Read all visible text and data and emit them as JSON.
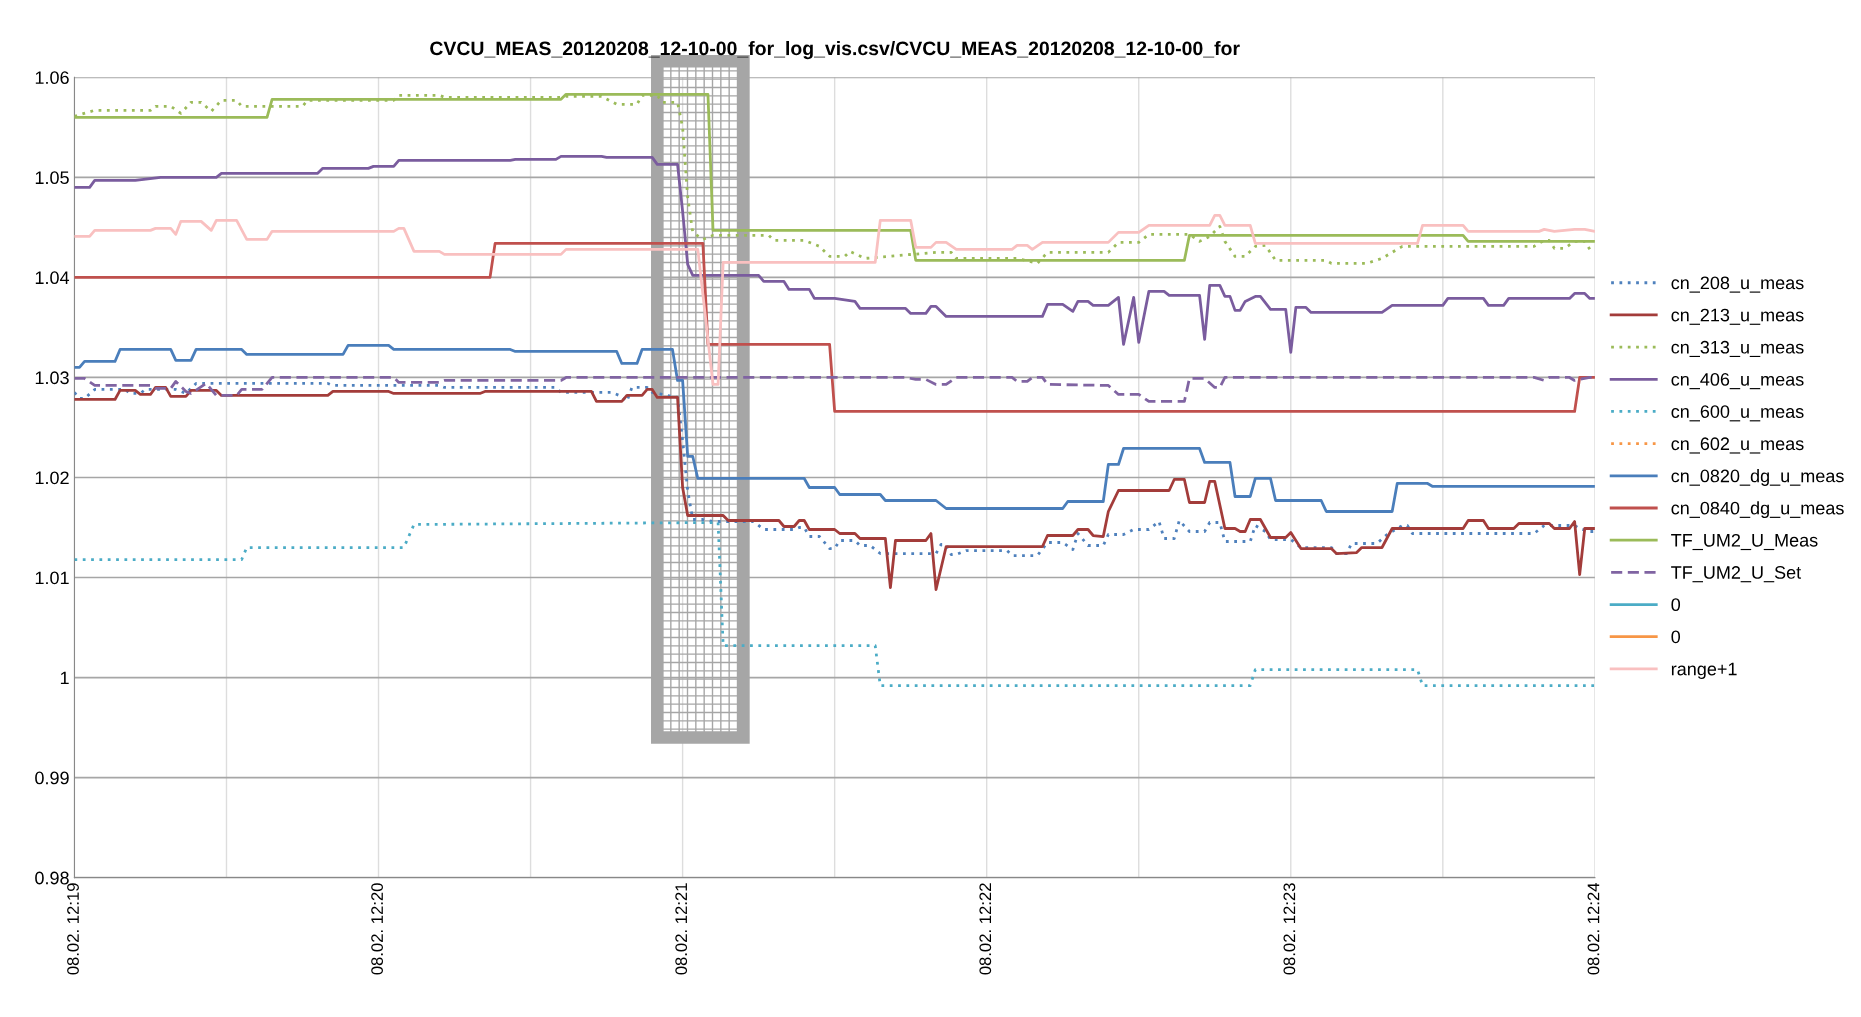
{
  "chart_data": {
    "type": "line",
    "title": "CVCU_MEAS_20120208_12-10-00_for_log_vis.csv/CVCU_MEAS_20120208_12-10-00_for",
    "xlim": [
      "2012-02-08T12:19",
      "2012-02-08T12:24"
    ],
    "xticks": [
      {
        "value": "2012-02-08T12:19",
        "label": "08.02. 12:19"
      },
      {
        "value": "2012-02-08T12:19:30",
        "label": null
      },
      {
        "value": "2012-02-08T12:20",
        "label": "08.02. 12:20"
      },
      {
        "value": "2012-02-08T12:20:30",
        "label": null
      },
      {
        "value": "2012-02-08T12:21",
        "label": "08.02. 12:21"
      },
      {
        "value": "2012-02-08T12:21:30",
        "label": null
      },
      {
        "value": "2012-02-08T12:22",
        "label": "08.02. 12:22"
      },
      {
        "value": "2012-02-08T12:22:30",
        "label": null
      },
      {
        "value": "2012-02-08T12:23",
        "label": "08.02. 12:23"
      },
      {
        "value": "2012-02-08T12:23:30",
        "label": null
      },
      {
        "value": "2012-02-08T12:24",
        "label": "08.02. 12:24"
      }
    ],
    "ylim": [
      0.98,
      1.06
    ],
    "yticks": [
      0.98,
      0.99,
      1,
      1.01,
      1.02,
      1.03,
      1.04,
      1.05,
      1.06
    ],
    "grid": true,
    "legend": "right",
    "marker": "none",
    "bands": [
      {
        "axis": "x",
        "from": "2012-02-08T12:20:55",
        "to": "2012-02-08T12:21:12",
        "color": "#a6a6a6"
      }
    ],
    "series": [
      {
        "name": "cn_208_u_meas",
        "color": "#4f81bd",
        "line_style": "dotted",
        "x": [
          "2012-02-08T12:19:00",
          "2012-02-08T12:19:01",
          "2012-02-08T12:19:02",
          "2012-02-08T12:19:04",
          "2012-02-08T12:19:10",
          "2012-02-08T12:19:11",
          "2012-02-08T12:19:13",
          "2012-02-08T12:19:14",
          "2012-02-08T12:19:20",
          "2012-02-08T12:19:22",
          "2012-02-08T12:19:24",
          "2012-02-08T12:19:37",
          "2012-02-08T12:19:50",
          "2012-02-08T12:19:51",
          "2012-02-08T12:20:12",
          "2012-02-08T12:20:13",
          "2012-02-08T12:20:35",
          "2012-02-08T12:20:36",
          "2012-02-08T12:20:46",
          "2012-02-08T12:20:48",
          "2012-02-08T12:20:49",
          "2012-02-08T12:20:50",
          "2012-02-08T12:20:53",
          "2012-02-08T12:20:54",
          "2012-02-08T12:20:59",
          "2012-02-08T12:21:00",
          "2012-02-08T12:21:01",
          "2012-02-08T12:21:02",
          "2012-02-08T12:21:04",
          "2012-02-08T12:21:06",
          "2012-02-08T12:21:14",
          "2012-02-08T12:21:16",
          "2012-02-08T12:21:22",
          "2012-02-08T12:21:23",
          "2012-02-08T12:21:24",
          "2012-02-08T12:21:25",
          "2012-02-08T12:21:27",
          "2012-02-08T12:21:29",
          "2012-02-08T12:21:30",
          "2012-02-08T12:21:31",
          "2012-02-08T12:21:34",
          "2012-02-08T12:21:35",
          "2012-02-08T12:21:37",
          "2012-02-08T12:21:39",
          "2012-02-08T12:21:50",
          "2012-02-08T12:21:51",
          "2012-02-08T12:21:52",
          "2012-02-08T12:21:53",
          "2012-02-08T12:21:54",
          "2012-02-08T12:21:56",
          "2012-02-08T12:22:04",
          "2012-02-08T12:22:05",
          "2012-02-08T12:22:10",
          "2012-02-08T12:22:12",
          "2012-02-08T12:22:15",
          "2012-02-08T12:22:17",
          "2012-02-08T12:22:18",
          "2012-02-08T12:22:20",
          "2012-02-08T12:22:23",
          "2012-02-08T12:22:24",
          "2012-02-08T12:22:27",
          "2012-02-08T12:22:29",
          "2012-02-08T12:22:32",
          "2012-02-08T12:22:34",
          "2012-02-08T12:22:35",
          "2012-02-08T12:22:37",
          "2012-02-08T12:22:38",
          "2012-02-08T12:22:40",
          "2012-02-08T12:22:43",
          "2012-02-08T12:22:44",
          "2012-02-08T12:22:46",
          "2012-02-08T12:22:47",
          "2012-02-08T12:22:52",
          "2012-02-08T12:22:53",
          "2012-02-08T12:22:55",
          "2012-02-08T12:22:56",
          "2012-02-08T12:23:00",
          "2012-02-08T12:23:02",
          "2012-02-08T12:23:08",
          "2012-02-08T12:23:09",
          "2012-02-08T12:23:11",
          "2012-02-08T12:23:12",
          "2012-02-08T12:23:17",
          "2012-02-08T12:23:19",
          "2012-02-08T12:23:22",
          "2012-02-08T12:23:23",
          "2012-02-08T12:23:24",
          "2012-02-08T12:23:48",
          "2012-02-08T12:23:50",
          "2012-02-08T12:23:56",
          "2012-02-08T12:23:57",
          "2012-02-08T12:23:59",
          "2012-02-08T12:24:00"
        ],
        "values": [
          1.0285,
          1.0279,
          1.0279,
          1.0288,
          1.0288,
          1.0284,
          1.0284,
          1.0288,
          1.0288,
          1.0284,
          1.0294,
          1.0294,
          1.0294,
          1.0292,
          1.0292,
          1.029,
          1.029,
          1.0285,
          1.0285,
          1.0281,
          1.0276,
          1.029,
          1.029,
          1.0285,
          1.028,
          1.0237,
          1.0187,
          1.0158,
          1.0158,
          1.0156,
          1.0156,
          1.0148,
          1.0148,
          1.015,
          1.015,
          1.0141,
          1.0141,
          1.0129,
          1.0129,
          1.0137,
          1.0137,
          1.0132,
          1.0132,
          1.0124,
          1.0124,
          1.0133,
          1.0133,
          1.0123,
          1.0123,
          1.0127,
          1.0127,
          1.0122,
          1.0122,
          1.0135,
          1.0135,
          1.0128,
          1.0144,
          1.0132,
          1.0132,
          1.0143,
          1.0143,
          1.0148,
          1.0148,
          1.0156,
          1.0139,
          1.0139,
          1.0157,
          1.0146,
          1.0146,
          1.0155,
          1.0155,
          1.0136,
          1.0136,
          1.0152,
          1.0146,
          1.0138,
          1.0138,
          1.013,
          1.013,
          1.0124,
          1.0124,
          1.0134,
          1.0134,
          1.0143,
          1.0152,
          1.0152,
          1.0144,
          1.0144,
          1.0152,
          1.0152,
          1.0149,
          1.0146,
          1.0146
        ]
      },
      {
        "name": "cn_213_u_meas",
        "color": "#a33c3a",
        "line_style": "solid",
        "x": [
          "2012-02-08T12:19:00",
          "2012-02-08T12:19:08",
          "2012-02-08T12:19:09",
          "2012-02-08T12:19:12",
          "2012-02-08T12:19:13",
          "2012-02-08T12:19:15",
          "2012-02-08T12:19:16",
          "2012-02-08T12:19:18",
          "2012-02-08T12:19:19",
          "2012-02-08T12:19:22",
          "2012-02-08T12:19:23",
          "2012-02-08T12:19:28",
          "2012-02-08T12:19:29",
          "2012-02-08T12:19:50",
          "2012-02-08T12:19:51",
          "2012-02-08T12:20:02",
          "2012-02-08T12:20:03",
          "2012-02-08T12:20:20",
          "2012-02-08T12:20:21",
          "2012-02-08T12:20:42",
          "2012-02-08T12:20:43",
          "2012-02-08T12:20:48",
          "2012-02-08T12:20:49",
          "2012-02-08T12:20:52",
          "2012-02-08T12:20:53",
          "2012-02-08T12:20:54",
          "2012-02-08T12:20:55",
          "2012-02-08T12:20:59",
          "2012-02-08T12:21:00",
          "2012-02-08T12:21:01",
          "2012-02-08T12:21:08",
          "2012-02-08T12:21:09",
          "2012-02-08T12:21:19",
          "2012-02-08T12:21:20",
          "2012-02-08T12:21:22",
          "2012-02-08T12:21:23",
          "2012-02-08T12:21:24",
          "2012-02-08T12:21:25",
          "2012-02-08T12:21:30",
          "2012-02-08T12:21:31",
          "2012-02-08T12:21:34",
          "2012-02-08T12:21:35",
          "2012-02-08T12:21:40",
          "2012-02-08T12:21:41",
          "2012-02-08T12:21:42",
          "2012-02-08T12:21:48",
          "2012-02-08T12:21:49",
          "2012-02-08T12:21:50",
          "2012-02-08T12:21:52",
          "2012-02-08T12:22:11",
          "2012-02-08T12:22:12",
          "2012-02-08T12:22:17",
          "2012-02-08T12:22:18",
          "2012-02-08T12:22:20",
          "2012-02-08T12:22:21",
          "2012-02-08T12:22:23",
          "2012-02-08T12:22:24",
          "2012-02-08T12:22:26",
          "2012-02-08T12:22:36",
          "2012-02-08T12:22:37",
          "2012-02-08T12:22:39",
          "2012-02-08T12:22:40",
          "2012-02-08T12:22:43",
          "2012-02-08T12:22:44",
          "2012-02-08T12:22:45",
          "2012-02-08T12:22:47",
          "2012-02-08T12:22:49",
          "2012-02-08T12:22:50",
          "2012-02-08T12:22:51",
          "2012-02-08T12:22:52",
          "2012-02-08T12:22:54",
          "2012-02-08T12:22:56",
          "2012-02-08T12:22:59",
          "2012-02-08T12:23:00",
          "2012-02-08T12:23:02",
          "2012-02-08T12:23:08",
          "2012-02-08T12:23:09",
          "2012-02-08T12:23:13",
          "2012-02-08T12:23:14",
          "2012-02-08T12:23:18",
          "2012-02-08T12:23:20",
          "2012-02-08T12:23:34",
          "2012-02-08T12:23:35",
          "2012-02-08T12:23:38",
          "2012-02-08T12:23:39",
          "2012-02-08T12:23:44",
          "2012-02-08T12:23:45",
          "2012-02-08T12:23:51",
          "2012-02-08T12:23:52",
          "2012-02-08T12:23:55",
          "2012-02-08T12:23:56",
          "2012-02-08T12:23:57",
          "2012-02-08T12:23:58",
          "2012-02-08T12:24:00"
        ],
        "values": [
          1.0278,
          1.0278,
          1.0287,
          1.0287,
          1.0283,
          1.0283,
          1.029,
          1.029,
          1.0281,
          1.0281,
          1.0287,
          1.0287,
          1.0282,
          1.0282,
          1.0286,
          1.0286,
          1.0284,
          1.0284,
          1.0286,
          1.0286,
          1.0276,
          1.0276,
          1.0282,
          1.0282,
          1.0288,
          1.0288,
          1.028,
          1.028,
          1.019,
          1.0162,
          1.0162,
          1.0157,
          1.0157,
          1.0151,
          1.0151,
          1.0157,
          1.0157,
          1.0148,
          1.0148,
          1.0144,
          1.0144,
          1.0139,
          1.0139,
          1.009,
          1.0137,
          1.0137,
          1.0144,
          1.0088,
          1.0131,
          1.0131,
          1.0142,
          1.0142,
          1.0148,
          1.0148,
          1.0142,
          1.0141,
          1.0166,
          1.0187,
          1.0187,
          1.0198,
          1.0198,
          1.0175,
          1.0175,
          1.0196,
          1.0196,
          1.0149,
          1.0149,
          1.0146,
          1.0146,
          1.0158,
          1.0158,
          1.014,
          1.014,
          1.0145,
          1.0129,
          1.0129,
          1.0124,
          1.0125,
          1.013,
          1.013,
          1.0149,
          1.0149,
          1.0157,
          1.0157,
          1.0149,
          1.0149,
          1.0154,
          1.0154,
          1.0149,
          1.0149,
          1.0156,
          1.0103,
          1.0149,
          1.0149
        ]
      },
      {
        "name": "cn_313_u_meas",
        "color": "#9bbb59",
        "line_style": "dotted",
        "x": [
          "2012-02-08T12:19:00",
          "2012-02-08T12:19:04",
          "2012-02-08T12:19:15",
          "2012-02-08T12:19:16",
          "2012-02-08T12:19:19",
          "2012-02-08T12:19:21",
          "2012-02-08T12:19:23",
          "2012-02-08T12:19:25",
          "2012-02-08T12:19:27",
          "2012-02-08T12:19:29",
          "2012-02-08T12:19:32",
          "2012-02-08T12:19:33",
          "2012-02-08T12:19:45",
          "2012-02-08T12:19:46",
          "2012-02-08T12:20:03",
          "2012-02-08T12:20:04",
          "2012-02-08T12:20:12",
          "2012-02-08T12:20:13",
          "2012-02-08T12:20:36",
          "2012-02-08T12:20:37",
          "2012-02-08T12:20:44",
          "2012-02-08T12:20:47",
          "2012-02-08T12:20:51",
          "2012-02-08T12:20:52",
          "2012-02-08T12:20:55",
          "2012-02-08T12:20:56",
          "2012-02-08T12:20:59",
          "2012-02-08T12:21:00",
          "2012-02-08T12:21:01",
          "2012-02-08T12:21:02",
          "2012-02-08T12:21:04",
          "2012-02-08T12:21:06",
          "2012-02-08T12:21:17",
          "2012-02-08T12:21:18",
          "2012-02-08T12:21:24",
          "2012-02-08T12:21:27",
          "2012-02-08T12:21:29",
          "2012-02-08T12:21:32",
          "2012-02-08T12:21:33",
          "2012-02-08T12:21:36",
          "2012-02-08T12:21:50",
          "2012-02-08T12:21:53",
          "2012-02-08T12:21:54",
          "2012-02-08T12:22:06",
          "2012-02-08T12:22:10",
          "2012-02-08T12:22:12",
          "2012-02-08T12:22:24",
          "2012-02-08T12:22:26",
          "2012-02-08T12:22:30",
          "2012-02-08T12:22:32",
          "2012-02-08T12:22:40",
          "2012-02-08T12:22:42",
          "2012-02-08T12:22:44",
          "2012-02-08T12:22:46",
          "2012-02-08T12:22:47",
          "2012-02-08T12:22:49",
          "2012-02-08T12:22:51",
          "2012-02-08T12:22:53",
          "2012-02-08T12:22:55",
          "2012-02-08T12:22:57",
          "2012-02-08T12:23:07",
          "2012-02-08T12:23:08",
          "2012-02-08T12:23:15",
          "2012-02-08T12:23:18",
          "2012-02-08T12:23:22",
          "2012-02-08T12:23:48",
          "2012-02-08T12:23:50",
          "2012-02-08T12:23:51",
          "2012-02-08T12:23:52",
          "2012-02-08T12:23:54",
          "2012-02-08T12:23:56",
          "2012-02-08T12:23:58",
          "2012-02-08T12:23:59",
          "2012-02-08T12:24:00"
        ],
        "values": [
          1.0561,
          1.0567,
          1.0567,
          1.0571,
          1.0571,
          1.0564,
          1.0575,
          1.0575,
          1.0566,
          1.0577,
          1.0577,
          1.0571,
          1.0571,
          1.0577,
          1.0577,
          1.0582,
          1.0582,
          1.058,
          1.058,
          1.0581,
          1.0581,
          1.0573,
          1.0573,
          1.0582,
          1.0582,
          1.0575,
          1.0575,
          1.055,
          1.048,
          1.0445,
          1.0438,
          1.0442,
          1.0442,
          1.0437,
          1.0437,
          1.0431,
          1.0421,
          1.0421,
          1.0426,
          1.0419,
          1.0425,
          1.0425,
          1.0419,
          1.0419,
          1.0414,
          1.0425,
          1.0425,
          1.0435,
          1.0435,
          1.0443,
          1.0443,
          1.0436,
          1.0441,
          1.0451,
          1.0436,
          1.0421,
          1.0421,
          1.0431,
          1.0432,
          1.0417,
          1.0417,
          1.0414,
          1.0414,
          1.0419,
          1.0431,
          1.0431,
          1.0437,
          1.0437,
          1.0429,
          1.0429,
          1.0436,
          1.0436,
          1.0428,
          1.0429
        ]
      },
      {
        "name": "cn_406_u_meas",
        "color": "#7a5c9e",
        "line_style": "solid",
        "x": [
          "2012-02-08T12:19:00",
          "2012-02-08T12:19:03",
          "2012-02-08T12:19:04",
          "2012-02-08T12:19:12",
          "2012-02-08T12:19:17",
          "2012-02-08T12:19:28",
          "2012-02-08T12:19:29",
          "2012-02-08T12:19:48",
          "2012-02-08T12:19:49",
          "2012-02-08T12:19:58",
          "2012-02-08T12:19:59",
          "2012-02-08T12:20:03",
          "2012-02-08T12:20:04",
          "2012-02-08T12:20:26",
          "2012-02-08T12:20:27",
          "2012-02-08T12:20:35",
          "2012-02-08T12:20:36",
          "2012-02-08T12:20:44",
          "2012-02-08T12:20:45",
          "2012-02-08T12:20:54",
          "2012-02-08T12:20:55",
          "2012-02-08T12:20:59",
          "2012-02-08T12:21:00",
          "2012-02-08T12:21:01",
          "2012-02-08T12:21:02",
          "2012-02-08T12:21:15",
          "2012-02-08T12:21:16",
          "2012-02-08T12:21:20",
          "2012-02-08T12:21:21",
          "2012-02-08T12:21:25",
          "2012-02-08T12:21:26",
          "2012-02-08T12:21:30",
          "2012-02-08T12:21:34",
          "2012-02-08T12:21:35",
          "2012-02-08T12:21:44",
          "2012-02-08T12:21:45",
          "2012-02-08T12:21:48",
          "2012-02-08T12:21:49",
          "2012-02-08T12:21:50",
          "2012-02-08T12:21:52",
          "2012-02-08T12:22:11",
          "2012-02-08T12:22:12",
          "2012-02-08T12:22:15",
          "2012-02-08T12:22:17",
          "2012-02-08T12:22:18",
          "2012-02-08T12:22:20",
          "2012-02-08T12:22:21",
          "2012-02-08T12:22:24",
          "2012-02-08T12:22:26",
          "2012-02-08T12:22:27",
          "2012-02-08T12:22:29",
          "2012-02-08T12:22:30",
          "2012-02-08T12:22:32",
          "2012-02-08T12:22:35",
          "2012-02-08T12:22:36",
          "2012-02-08T12:22:42",
          "2012-02-08T12:22:43",
          "2012-02-08T12:22:44",
          "2012-02-08T12:22:46",
          "2012-02-08T12:22:47",
          "2012-02-08T12:22:48",
          "2012-02-08T12:22:49",
          "2012-02-08T12:22:50",
          "2012-02-08T12:22:51",
          "2012-02-08T12:22:53",
          "2012-02-08T12:22:54",
          "2012-02-08T12:22:56",
          "2012-02-08T12:22:59",
          "2012-02-08T12:23:00",
          "2012-02-08T12:23:01",
          "2012-02-08T12:23:03",
          "2012-02-08T12:23:04",
          "2012-02-08T12:23:18",
          "2012-02-08T12:23:20",
          "2012-02-08T12:23:30",
          "2012-02-08T12:23:31",
          "2012-02-08T12:23:38",
          "2012-02-08T12:23:39",
          "2012-02-08T12:23:42",
          "2012-02-08T12:23:43",
          "2012-02-08T12:23:55",
          "2012-02-08T12:23:56",
          "2012-02-08T12:23:58",
          "2012-02-08T12:23:59",
          "2012-02-08T12:24:00"
        ],
        "values": [
          1.049,
          1.049,
          1.0497,
          1.0497,
          1.05,
          1.05,
          1.0504,
          1.0504,
          1.0509,
          1.0509,
          1.0511,
          1.0511,
          1.0517,
          1.0517,
          1.0518,
          1.0518,
          1.0521,
          1.0521,
          1.052,
          1.052,
          1.0513,
          1.0513,
          1.0466,
          1.0413,
          1.0402,
          1.0402,
          1.0396,
          1.0396,
          1.0388,
          1.0388,
          1.0379,
          1.0379,
          1.0376,
          1.0369,
          1.0369,
          1.0364,
          1.0364,
          1.0371,
          1.0371,
          1.0361,
          1.0361,
          1.0373,
          1.0373,
          1.0366,
          1.0376,
          1.0376,
          1.0372,
          1.0372,
          1.038,
          1.0333,
          1.038,
          1.0335,
          1.0386,
          1.0386,
          1.0382,
          1.0382,
          1.0338,
          1.0392,
          1.0392,
          1.0381,
          1.0381,
          1.0367,
          1.0367,
          1.0376,
          1.0381,
          1.0381,
          1.0368,
          1.0368,
          1.0325,
          1.037,
          1.037,
          1.0365,
          1.0365,
          1.0372,
          1.0372,
          1.0379,
          1.0379,
          1.0372,
          1.0372,
          1.0379,
          1.0379,
          1.0384,
          1.0384,
          1.0379,
          1.0379
        ]
      },
      {
        "name": "cn_600_u_meas",
        "color": "#4bacc6",
        "line_style": "dotted",
        "x": [
          "2012-02-08T12:19:00",
          "2012-02-08T12:19:33",
          "2012-02-08T12:19:34",
          "2012-02-08T12:20:05",
          "2012-02-08T12:20:07",
          "2012-02-08T12:21:07",
          "2012-02-08T12:21:08",
          "2012-02-08T12:21:38",
          "2012-02-08T12:21:39",
          "2012-02-08T12:22:52",
          "2012-02-08T12:22:53",
          "2012-02-08T12:23:25",
          "2012-02-08T12:23:26",
          "2012-02-08T12:24:00"
        ],
        "values": [
          1.0118,
          1.0118,
          1.013,
          1.013,
          1.0153,
          1.0155,
          1.0032,
          1.0032,
          0.9992,
          0.9992,
          1.0008,
          1.0008,
          0.9992,
          0.9992
        ]
      },
      {
        "name": "cn_602_u_meas",
        "color": "#f79646",
        "line_style": "dotted"
      },
      {
        "name": "cn_0820_dg_u_meas",
        "color": "#4a7ebb",
        "line_style": "solid",
        "x": [
          "2012-02-08T12:19:00",
          "2012-02-08T12:19:01",
          "2012-02-08T12:19:02",
          "2012-02-08T12:19:08",
          "2012-02-08T12:19:09",
          "2012-02-08T12:19:19",
          "2012-02-08T12:19:20",
          "2012-02-08T12:19:23",
          "2012-02-08T12:19:24",
          "2012-02-08T12:19:33",
          "2012-02-08T12:19:34",
          "2012-02-08T12:19:53",
          "2012-02-08T12:19:54",
          "2012-02-08T12:20:02",
          "2012-02-08T12:20:03",
          "2012-02-08T12:20:26",
          "2012-02-08T12:20:27",
          "2012-02-08T12:20:47",
          "2012-02-08T12:20:48",
          "2012-02-08T12:20:51",
          "2012-02-08T12:20:52",
          "2012-02-08T12:20:58",
          "2012-02-08T12:20:59",
          "2012-02-08T12:21:00",
          "2012-02-08T12:21:01",
          "2012-02-08T12:21:02",
          "2012-02-08T12:21:03",
          "2012-02-08T12:21:24",
          "2012-02-08T12:21:25",
          "2012-02-08T12:21:30",
          "2012-02-08T12:21:31",
          "2012-02-08T12:21:39",
          "2012-02-08T12:21:40",
          "2012-02-08T12:21:50",
          "2012-02-08T12:21:52",
          "2012-02-08T12:22:15",
          "2012-02-08T12:22:16",
          "2012-02-08T12:22:23",
          "2012-02-08T12:22:24",
          "2012-02-08T12:22:26",
          "2012-02-08T12:22:27",
          "2012-02-08T12:22:42",
          "2012-02-08T12:22:43",
          "2012-02-08T12:22:48",
          "2012-02-08T12:22:49",
          "2012-02-08T12:22:52",
          "2012-02-08T12:22:53",
          "2012-02-08T12:22:56",
          "2012-02-08T12:22:57",
          "2012-02-08T12:23:06",
          "2012-02-08T12:23:07",
          "2012-02-08T12:23:20",
          "2012-02-08T12:23:21",
          "2012-02-08T12:23:27",
          "2012-02-08T12:23:28",
          "2012-02-08T12:24:00"
        ],
        "values": [
          1.031,
          1.031,
          1.0316,
          1.0316,
          1.0328,
          1.0328,
          1.0317,
          1.0317,
          1.0328,
          1.0328,
          1.0323,
          1.0323,
          1.0332,
          1.0332,
          1.0328,
          1.0328,
          1.0326,
          1.0326,
          1.0314,
          1.0314,
          1.0328,
          1.0328,
          1.0297,
          1.0297,
          1.0221,
          1.0221,
          1.0199,
          1.0199,
          1.019,
          1.019,
          1.0183,
          1.0183,
          1.0177,
          1.0177,
          1.0169,
          1.0169,
          1.0176,
          1.0176,
          1.0213,
          1.0213,
          1.0229,
          1.0229,
          1.0215,
          1.0215,
          1.0181,
          1.0181,
          1.0199,
          1.0199,
          1.0177,
          1.0177,
          1.0166,
          1.0166,
          1.0194,
          1.0194,
          1.0191,
          1.0191
        ]
      },
      {
        "name": "cn_0840_dg_u_meas",
        "color": "#c0504d",
        "line_style": "solid",
        "x": [
          "2012-02-08T12:19:00",
          "2012-02-08T12:20:22",
          "2012-02-08T12:20:23",
          "2012-02-08T12:21:04",
          "2012-02-08T12:21:05",
          "2012-02-08T12:21:29",
          "2012-02-08T12:21:30",
          "2012-02-08T12:23:56",
          "2012-02-08T12:23:57",
          "2012-02-08T12:24:00"
        ],
        "values": [
          1.04,
          1.04,
          1.0434,
          1.0434,
          1.0333,
          1.0333,
          1.0266,
          1.0266,
          1.03,
          1.03
        ]
      },
      {
        "name": "TF_UM2_U_Meas",
        "color": "#9bbb59",
        "line_style": "solid",
        "x": [
          "2012-02-08T12:19:00",
          "2012-02-08T12:19:38",
          "2012-02-08T12:19:39",
          "2012-02-08T12:20:36",
          "2012-02-08T12:20:37",
          "2012-02-08T12:21:05",
          "2012-02-08T12:21:06",
          "2012-02-08T12:21:45",
          "2012-02-08T12:21:46",
          "2012-02-08T12:22:39",
          "2012-02-08T12:22:40",
          "2012-02-08T12:23:34",
          "2012-02-08T12:23:35",
          "2012-02-08T12:24:00"
        ],
        "values": [
          1.056,
          1.056,
          1.0578,
          1.0578,
          1.0583,
          1.0583,
          1.0447,
          1.0447,
          1.0417,
          1.0417,
          1.0442,
          1.0442,
          1.0436,
          1.0436
        ]
      },
      {
        "name": "TF_UM2_U_Set",
        "color": "#8064a2",
        "line_style": "dashed",
        "x": [
          "2012-02-08T12:19:00",
          "2012-02-08T12:19:02",
          "2012-02-08T12:19:04",
          "2012-02-08T12:19:15",
          "2012-02-08T12:19:16",
          "2012-02-08T12:19:19",
          "2012-02-08T12:19:20",
          "2012-02-08T12:19:22",
          "2012-02-08T12:19:23",
          "2012-02-08T12:19:26",
          "2012-02-08T12:19:28",
          "2012-02-08T12:19:32",
          "2012-02-08T12:19:33",
          "2012-02-08T12:19:37",
          "2012-02-08T12:19:39",
          "2012-02-08T12:20:03",
          "2012-02-08T12:20:04",
          "2012-02-08T12:20:12",
          "2012-02-08T12:20:13",
          "2012-02-08T12:20:36",
          "2012-02-08T12:20:37",
          "2012-02-08T12:21:44",
          "2012-02-08T12:21:46",
          "2012-02-08T12:21:48",
          "2012-02-08T12:21:50",
          "2012-02-08T12:21:52",
          "2012-02-08T12:21:54",
          "2012-02-08T12:22:05",
          "2012-02-08T12:22:06",
          "2012-02-08T12:22:08",
          "2012-02-08T12:22:09",
          "2012-02-08T12:22:11",
          "2012-02-08T12:22:12",
          "2012-02-08T12:22:24",
          "2012-02-08T12:22:26",
          "2012-02-08T12:22:30",
          "2012-02-08T12:22:32",
          "2012-02-08T12:22:39",
          "2012-02-08T12:22:40",
          "2012-02-08T12:22:43",
          "2012-02-08T12:22:45",
          "2012-02-08T12:22:46",
          "2012-02-08T12:22:47",
          "2012-02-08T12:23:48",
          "2012-02-08T12:23:50",
          "2012-02-08T12:23:51",
          "2012-02-08T12:23:55",
          "2012-02-08T12:23:56",
          "2012-02-08T12:23:59",
          "2012-02-08T12:24:00"
        ],
        "values": [
          1.0299,
          1.0299,
          1.0292,
          1.0292,
          1.0289,
          1.0289,
          1.0296,
          1.0286,
          1.0284,
          1.0294,
          1.0282,
          1.0282,
          1.0288,
          1.0288,
          1.03,
          1.03,
          1.0295,
          1.0295,
          1.0297,
          1.0297,
          1.03,
          1.03,
          1.0298,
          1.0298,
          1.0293,
          1.0293,
          1.03,
          1.03,
          1.0296,
          1.0296,
          1.03,
          1.03,
          1.0293,
          1.0292,
          1.0283,
          1.0283,
          1.0276,
          1.0276,
          1.0299,
          1.0299,
          1.029,
          1.029,
          1.03,
          1.03,
          1.0297,
          1.03,
          1.03,
          1.0297,
          1.03,
          1.03
        ]
      },
      {
        "name": "0",
        "color": "#4bacc6",
        "line_style": "solid"
      },
      {
        "name": "0",
        "color": "#f79646",
        "line_style": "solid"
      },
      {
        "name": "range+1",
        "color": "#f9c0c0",
        "line_style": "solid",
        "x": [
          "2012-02-08T12:19:00",
          "2012-02-08T12:19:03",
          "2012-02-08T12:19:04",
          "2012-02-08T12:19:15",
          "2012-02-08T12:19:16",
          "2012-02-08T12:19:19",
          "2012-02-08T12:19:20",
          "2012-02-08T12:19:21",
          "2012-02-08T12:19:25",
          "2012-02-08T12:19:27",
          "2012-02-08T12:19:28",
          "2012-02-08T12:19:32",
          "2012-02-08T12:19:34",
          "2012-02-08T12:19:38",
          "2012-02-08T12:19:39",
          "2012-02-08T12:20:03",
          "2012-02-08T12:20:04",
          "2012-02-08T12:20:05",
          "2012-02-08T12:20:07",
          "2012-02-08T12:20:12",
          "2012-02-08T12:20:13",
          "2012-02-08T12:20:36",
          "2012-02-08T12:20:37",
          "2012-02-08T12:21:03",
          "2012-02-08T12:21:06",
          "2012-02-08T12:21:07",
          "2012-02-08T12:21:08",
          "2012-02-08T12:21:38",
          "2012-02-08T12:21:39",
          "2012-02-08T12:21:45",
          "2012-02-08T12:21:46",
          "2012-02-08T12:21:49",
          "2012-02-08T12:21:50",
          "2012-02-08T12:21:52",
          "2012-02-08T12:21:54",
          "2012-02-08T12:22:05",
          "2012-02-08T12:22:06",
          "2012-02-08T12:22:08",
          "2012-02-08T12:22:09",
          "2012-02-08T12:22:11",
          "2012-02-08T12:22:24",
          "2012-02-08T12:22:26",
          "2012-02-08T12:22:30",
          "2012-02-08T12:22:32",
          "2012-02-08T12:22:44",
          "2012-02-08T12:22:45",
          "2012-02-08T12:22:46",
          "2012-02-08T12:22:47",
          "2012-02-08T12:22:52",
          "2012-02-08T12:22:53",
          "2012-02-08T12:23:25",
          "2012-02-08T12:23:26",
          "2012-02-08T12:23:34",
          "2012-02-08T12:23:35",
          "2012-02-08T12:23:49",
          "2012-02-08T12:23:50",
          "2012-02-08T12:23:52",
          "2012-02-08T12:23:56",
          "2012-02-08T12:23:58",
          "2012-02-08T12:24:00"
        ],
        "values": [
          1.0441,
          1.0441,
          1.0447,
          1.0447,
          1.0449,
          1.0449,
          1.0443,
          1.0456,
          1.0456,
          1.0447,
          1.0457,
          1.0457,
          1.0438,
          1.0438,
          1.0446,
          1.0446,
          1.0449,
          1.0449,
          1.0426,
          1.0426,
          1.0423,
          1.0423,
          1.0428,
          1.0428,
          1.0293,
          1.0293,
          1.0415,
          1.0415,
          1.0457,
          1.0457,
          1.043,
          1.043,
          1.0435,
          1.0435,
          1.0428,
          1.0428,
          1.0432,
          1.0432,
          1.0428,
          1.0435,
          1.0435,
          1.0445,
          1.0445,
          1.0452,
          1.0452,
          1.0462,
          1.0462,
          1.0452,
          1.0452,
          1.0434,
          1.0434,
          1.0452,
          1.0452,
          1.0446,
          1.0446,
          1.0448,
          1.0446,
          1.0448,
          1.0448,
          1.0446
        ]
      }
    ]
  }
}
